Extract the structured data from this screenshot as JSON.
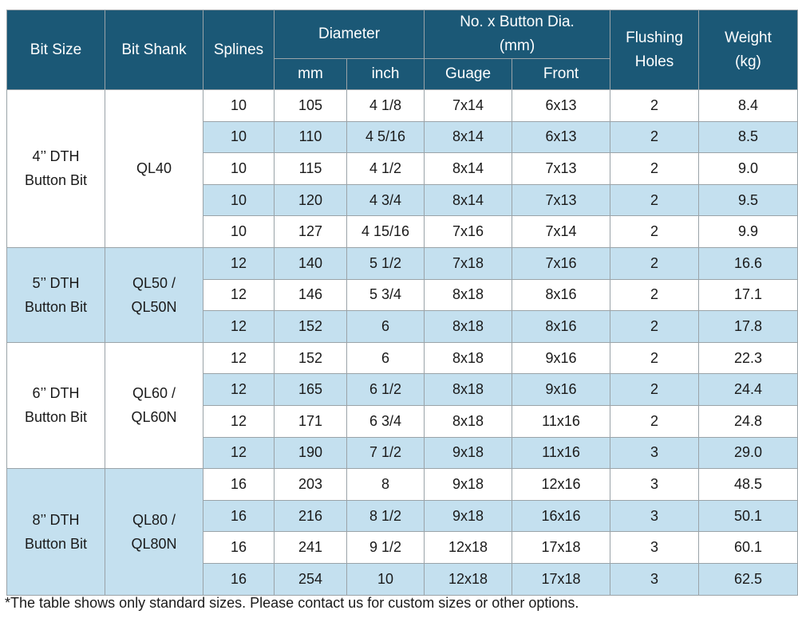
{
  "headers": {
    "bit_size": "Bit Size",
    "bit_shank": "Bit Shank",
    "splines": "Splines",
    "diameter": "Diameter",
    "diameter_mm": "mm",
    "diameter_inch": "inch",
    "buttons": "No. x Button Dia. (mm)",
    "buttons_guage": "Guage",
    "buttons_front": "Front",
    "flushing_holes": "Flushing Holes",
    "weight": "Weight (kg)"
  },
  "groups": [
    {
      "bit_size": "4’’ DTH Button Bit",
      "bit_shank": "QL40",
      "rows": [
        [
          "10",
          "105",
          "4 1/8",
          "7x14",
          "6x13",
          "2",
          "8.4"
        ],
        [
          "10",
          "110",
          "4 5/16",
          "8x14",
          "6x13",
          "2",
          "8.5"
        ],
        [
          "10",
          "115",
          "4 1/2",
          "8x14",
          "7x13",
          "2",
          "9.0"
        ],
        [
          "10",
          "120",
          "4 3/4",
          "8x14",
          "7x13",
          "2",
          "9.5"
        ],
        [
          "10",
          "127",
          "4 15/16",
          "7x16",
          "7x14",
          "2",
          "9.9"
        ]
      ]
    },
    {
      "bit_size": "5’’ DTH Button Bit",
      "bit_shank": "QL50 / QL50N",
      "rows": [
        [
          "12",
          "140",
          "5 1/2",
          "7x18",
          "7x16",
          "2",
          "16.6"
        ],
        [
          "12",
          "146",
          "5 3/4",
          "8x18",
          "8x16",
          "2",
          "17.1"
        ],
        [
          "12",
          "152",
          "6",
          "8x18",
          "8x16",
          "2",
          "17.8"
        ]
      ]
    },
    {
      "bit_size": "6’’ DTH Button Bit",
      "bit_shank": "QL60 / QL60N",
      "rows": [
        [
          "12",
          "152",
          "6",
          "8x18",
          "9x16",
          "2",
          "22.3"
        ],
        [
          "12",
          "165",
          "6 1/2",
          "8x18",
          "9x16",
          "2",
          "24.4"
        ],
        [
          "12",
          "171",
          "6 3/4",
          "8x18",
          "11x16",
          "2",
          "24.8"
        ],
        [
          "12",
          "190",
          "7 1/2",
          "9x18",
          "11x16",
          "3",
          "29.0"
        ]
      ]
    },
    {
      "bit_size": "8’’ DTH Button Bit",
      "bit_shank": "QL80 / QL80N",
      "rows": [
        [
          "16",
          "203",
          "8",
          "9x18",
          "12x16",
          "3",
          "48.5"
        ],
        [
          "16",
          "216",
          "8 1/2",
          "9x18",
          "16x16",
          "3",
          "50.1"
        ],
        [
          "16",
          "241",
          "9 1/2",
          "12x18",
          "17x18",
          "3",
          "60.1"
        ],
        [
          "16",
          "254",
          "10",
          "12x18",
          "17x18",
          "3",
          "62.5"
        ]
      ]
    }
  ],
  "note": "*The table shows only standard sizes. Please contact us for custom sizes or other options.",
  "colors": {
    "header_bg": "#1b5876",
    "header_text": "#ffffff",
    "stripe_bg": "#c4e0ef",
    "row_bg": "#ffffff"
  }
}
